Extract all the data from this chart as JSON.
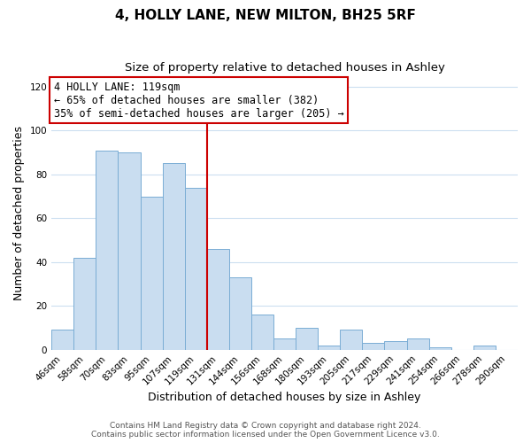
{
  "title": "4, HOLLY LANE, NEW MILTON, BH25 5RF",
  "subtitle": "Size of property relative to detached houses in Ashley",
  "xlabel": "Distribution of detached houses by size in Ashley",
  "ylabel": "Number of detached properties",
  "categories": [
    "46sqm",
    "58sqm",
    "70sqm",
    "83sqm",
    "95sqm",
    "107sqm",
    "119sqm",
    "131sqm",
    "144sqm",
    "156sqm",
    "168sqm",
    "180sqm",
    "193sqm",
    "205sqm",
    "217sqm",
    "229sqm",
    "241sqm",
    "254sqm",
    "266sqm",
    "278sqm",
    "290sqm"
  ],
  "values": [
    9,
    42,
    91,
    90,
    70,
    85,
    74,
    46,
    33,
    16,
    5,
    10,
    2,
    9,
    3,
    4,
    5,
    1,
    0,
    2,
    0
  ],
  "bar_color": "#c9ddf0",
  "bar_edge_color": "#7aadd4",
  "vline_color": "#cc0000",
  "annotation_line1": "4 HOLLY LANE: 119sqm",
  "annotation_line2": "← 65% of detached houses are smaller (382)",
  "annotation_line3": "35% of semi-detached houses are larger (205) →",
  "annotation_box_edgecolor": "#cc0000",
  "ylim": [
    0,
    125
  ],
  "yticks": [
    0,
    20,
    40,
    60,
    80,
    100,
    120
  ],
  "title_fontsize": 11,
  "subtitle_fontsize": 9.5,
  "axis_label_fontsize": 9,
  "tick_fontsize": 7.5,
  "annotation_fontsize": 8.5,
  "footer_fontsize": 6.5,
  "footer_line1": "Contains HM Land Registry data © Crown copyright and database right 2024.",
  "footer_line2": "Contains public sector information licensed under the Open Government Licence v3.0.",
  "background_color": "#ffffff",
  "grid_color": "#ccdff0"
}
